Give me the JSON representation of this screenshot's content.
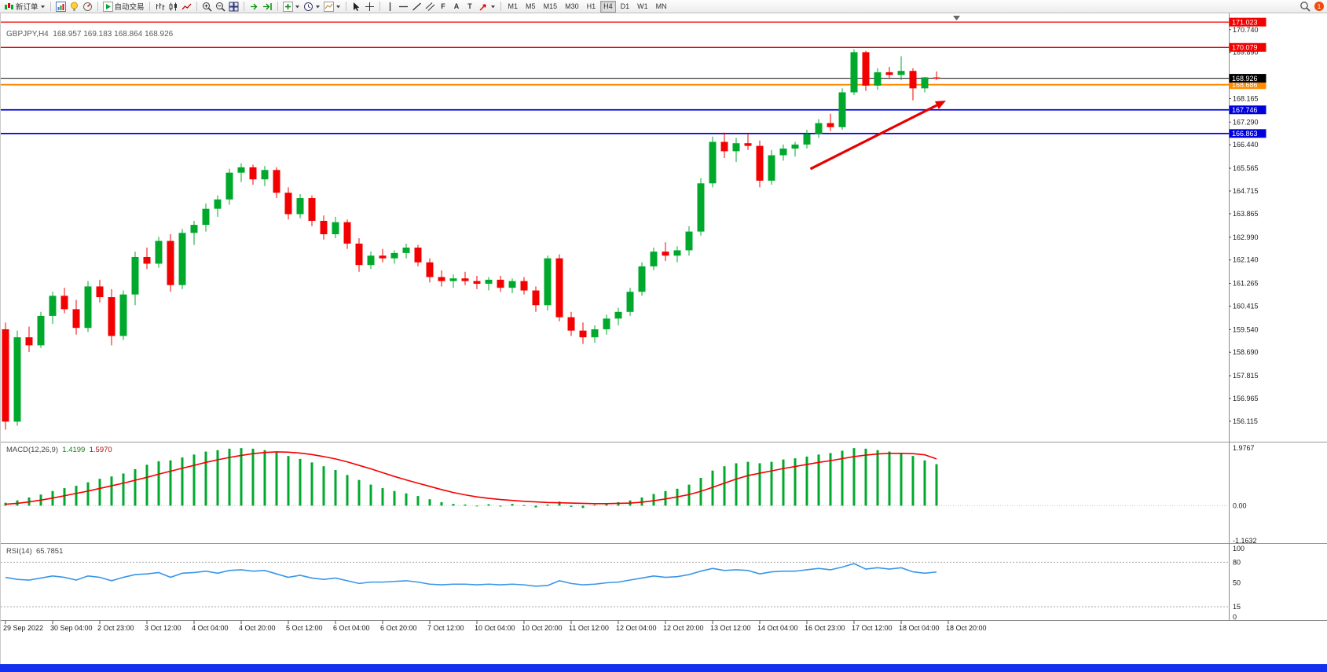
{
  "toolbar": {
    "new_order_label": "新订单",
    "autotrading_label": "自动交易",
    "timeframes": [
      "M1",
      "M5",
      "M15",
      "M30",
      "H1",
      "H4",
      "D1",
      "W1",
      "MN"
    ],
    "active_timeframe": "H4",
    "fibonacci_glyph": "F",
    "text_glyph": "A",
    "label_glyph": "T",
    "notification_count": "1"
  },
  "chart_data": {
    "type": "candlestick",
    "title": "GBPJPY,H4",
    "ohlc_text": "168.957 169.183 168.864 168.926",
    "colors": {
      "up": "#00a92c",
      "down": "#f30000",
      "level_red": "#f40000",
      "level_orange": "#ff8c00",
      "level_blue": "#0000dc",
      "current_line": "#111111",
      "macd_histogram": "#00a92c",
      "macd_signal": "#f30000",
      "rsi_line": "#3a96e8",
      "arrow": "#e60000",
      "taskbar": "#1430ef"
    },
    "price_axis_ticks": [
      "170.740",
      "169.890",
      "168.165",
      "167.290",
      "166.440",
      "165.565",
      "164.715",
      "163.865",
      "162.990",
      "162.140",
      "161.265",
      "160.415",
      "159.540",
      "158.690",
      "157.815",
      "156.965",
      "156.115"
    ],
    "levels": [
      {
        "label": "171.023",
        "price": 171.023,
        "color": "#f40000",
        "width": 1.3
      },
      {
        "label": "170.079",
        "price": 170.079,
        "color": "#f40000",
        "width": 1.3
      },
      {
        "label": "168.686",
        "price": 168.686,
        "color": "#ff8c00",
        "width": 2
      },
      {
        "label": "167.746",
        "price": 167.746,
        "color": "#0000dc",
        "width": 1.8
      },
      {
        "label": "166.863",
        "price": 166.863,
        "color": "#0000dc",
        "width": 1.8
      }
    ],
    "current_price": {
      "label": "168.926",
      "price": 168.926,
      "color": "#000000",
      "width": 1
    },
    "time_labels": [
      "29 Sep 2022",
      "30 Sep 04:00",
      "2 Oct 23:00",
      "3 Oct 12:00",
      "4 Oct 04:00",
      "4 Oct 20:00",
      "5 Oct 12:00",
      "6 Oct 04:00",
      "6 Oct 20:00",
      "7 Oct 12:00",
      "10 Oct 04:00",
      "10 Oct 20:00",
      "11 Oct 12:00",
      "12 Oct 04:00",
      "12 Oct 20:00",
      "13 Oct 12:00",
      "14 Oct 04:00",
      "16 Oct 23:00",
      "17 Oct 12:00",
      "18 Oct 04:00",
      "18 Oct 20:00"
    ],
    "candles": [
      [
        159.55,
        159.8,
        155.8,
        156.1
      ],
      [
        156.1,
        159.5,
        155.95,
        159.25
      ],
      [
        159.25,
        159.65,
        158.7,
        158.95
      ],
      [
        158.95,
        160.2,
        158.85,
        160.05
      ],
      [
        160.05,
        160.95,
        159.75,
        160.8
      ],
      [
        160.8,
        161.1,
        160.15,
        160.3
      ],
      [
        160.3,
        160.65,
        159.35,
        159.6
      ],
      [
        159.6,
        161.35,
        159.45,
        161.15
      ],
      [
        161.15,
        161.4,
        160.55,
        160.75
      ],
      [
        160.75,
        161.05,
        158.95,
        159.3
      ],
      [
        159.3,
        161.0,
        159.15,
        160.85
      ],
      [
        160.85,
        162.45,
        160.45,
        162.25
      ],
      [
        162.25,
        162.6,
        161.8,
        162.0
      ],
      [
        162.0,
        163.0,
        161.85,
        162.85
      ],
      [
        162.85,
        163.1,
        160.95,
        161.2
      ],
      [
        161.2,
        163.3,
        161.05,
        163.15
      ],
      [
        163.15,
        163.6,
        162.7,
        163.45
      ],
      [
        163.45,
        164.25,
        163.2,
        164.05
      ],
      [
        164.05,
        164.55,
        163.75,
        164.4
      ],
      [
        164.4,
        165.55,
        164.2,
        165.4
      ],
      [
        165.4,
        165.75,
        165.05,
        165.6
      ],
      [
        165.6,
        165.7,
        164.95,
        165.15
      ],
      [
        165.15,
        165.65,
        164.9,
        165.5
      ],
      [
        165.5,
        165.6,
        164.45,
        164.65
      ],
      [
        164.65,
        164.85,
        163.65,
        163.85
      ],
      [
        163.85,
        164.6,
        163.7,
        164.45
      ],
      [
        164.45,
        164.55,
        163.4,
        163.6
      ],
      [
        163.6,
        163.8,
        162.9,
        163.1
      ],
      [
        163.1,
        163.75,
        162.95,
        163.55
      ],
      [
        163.55,
        163.65,
        162.55,
        162.75
      ],
      [
        162.75,
        162.95,
        161.7,
        161.95
      ],
      [
        161.95,
        162.45,
        161.8,
        162.3
      ],
      [
        162.3,
        162.55,
        162.05,
        162.2
      ],
      [
        162.2,
        162.5,
        162.0,
        162.4
      ],
      [
        162.4,
        162.75,
        162.2,
        162.6
      ],
      [
        162.6,
        162.7,
        161.9,
        162.05
      ],
      [
        162.05,
        162.2,
        161.3,
        161.5
      ],
      [
        161.5,
        161.75,
        161.15,
        161.35
      ],
      [
        161.35,
        161.6,
        161.1,
        161.45
      ],
      [
        161.45,
        161.7,
        161.2,
        161.35
      ],
      [
        161.35,
        161.55,
        161.05,
        161.25
      ],
      [
        161.25,
        161.5,
        161.0,
        161.4
      ],
      [
        161.4,
        161.55,
        160.95,
        161.1
      ],
      [
        161.1,
        161.45,
        160.9,
        161.35
      ],
      [
        161.35,
        161.5,
        160.85,
        161.0
      ],
      [
        161.0,
        161.15,
        160.2,
        160.45
      ],
      [
        160.45,
        162.3,
        160.25,
        162.2
      ],
      [
        162.2,
        162.35,
        159.85,
        160.0
      ],
      [
        160.0,
        160.2,
        159.3,
        159.5
      ],
      [
        159.5,
        159.8,
        159.0,
        159.25
      ],
      [
        159.25,
        159.7,
        159.05,
        159.55
      ],
      [
        159.55,
        160.1,
        159.35,
        159.95
      ],
      [
        159.95,
        160.35,
        159.7,
        160.2
      ],
      [
        160.2,
        161.1,
        160.05,
        160.95
      ],
      [
        160.95,
        162.05,
        160.8,
        161.9
      ],
      [
        161.9,
        162.6,
        161.75,
        162.45
      ],
      [
        162.45,
        162.8,
        162.1,
        162.3
      ],
      [
        162.3,
        162.65,
        162.05,
        162.5
      ],
      [
        162.5,
        163.4,
        162.3,
        163.2
      ],
      [
        163.2,
        165.2,
        163.05,
        165.0
      ],
      [
        165.0,
        166.75,
        164.85,
        166.55
      ],
      [
        166.55,
        166.9,
        165.95,
        166.2
      ],
      [
        166.2,
        166.7,
        165.8,
        166.5
      ],
      [
        166.5,
        166.85,
        166.25,
        166.4
      ],
      [
        166.4,
        166.6,
        164.85,
        165.1
      ],
      [
        165.1,
        166.25,
        164.95,
        166.05
      ],
      [
        166.05,
        166.45,
        165.85,
        166.3
      ],
      [
        166.3,
        166.55,
        166.0,
        166.45
      ],
      [
        166.45,
        167.0,
        166.3,
        166.85
      ],
      [
        166.85,
        167.4,
        166.7,
        167.25
      ],
      [
        167.25,
        167.6,
        166.95,
        167.1
      ],
      [
        167.1,
        168.55,
        167.0,
        168.4
      ],
      [
        168.4,
        170.0,
        168.3,
        169.9
      ],
      [
        169.9,
        169.95,
        168.45,
        168.65
      ],
      [
        168.65,
        169.3,
        168.5,
        169.15
      ],
      [
        169.15,
        169.35,
        168.9,
        169.05
      ],
      [
        169.05,
        169.75,
        168.85,
        169.2
      ],
      [
        169.2,
        169.3,
        168.1,
        168.55
      ],
      [
        168.55,
        168.97,
        168.4,
        168.96
      ],
      [
        168.957,
        169.183,
        168.864,
        168.926
      ]
    ],
    "macd": {
      "label": "MACD(12,26,9)",
      "value_main": "1.4199",
      "value_signal": "1.5970",
      "scale": [
        "1.9767",
        "0.00",
        "-1.1632"
      ],
      "histogram": [
        0.1,
        0.18,
        0.28,
        0.38,
        0.5,
        0.6,
        0.68,
        0.8,
        0.92,
        1.0,
        1.1,
        1.25,
        1.4,
        1.52,
        1.55,
        1.65,
        1.75,
        1.85,
        1.9,
        1.95,
        1.97,
        1.95,
        1.9,
        1.82,
        1.7,
        1.6,
        1.48,
        1.35,
        1.22,
        1.05,
        0.88,
        0.72,
        0.6,
        0.5,
        0.42,
        0.33,
        0.22,
        0.12,
        0.06,
        0.04,
        -0.02,
        0.05,
        -0.03,
        0.06,
        0.02,
        -0.06,
        0.04,
        0.14,
        -0.04,
        -0.08,
        0.03,
        0.08,
        0.12,
        0.18,
        0.28,
        0.4,
        0.5,
        0.58,
        0.72,
        0.95,
        1.2,
        1.35,
        1.45,
        1.5,
        1.45,
        1.5,
        1.58,
        1.62,
        1.68,
        1.75,
        1.8,
        1.88,
        1.97,
        1.95,
        1.9,
        1.85,
        1.8,
        1.7,
        1.55,
        1.42
      ],
      "signal": [
        0.05,
        0.08,
        0.13,
        0.19,
        0.26,
        0.34,
        0.42,
        0.5,
        0.59,
        0.68,
        0.77,
        0.87,
        0.97,
        1.08,
        1.18,
        1.28,
        1.38,
        1.48,
        1.57,
        1.65,
        1.72,
        1.78,
        1.82,
        1.84,
        1.83,
        1.8,
        1.75,
        1.68,
        1.6,
        1.5,
        1.38,
        1.26,
        1.13,
        1.0,
        0.88,
        0.77,
        0.66,
        0.55,
        0.45,
        0.37,
        0.3,
        0.25,
        0.21,
        0.18,
        0.15,
        0.13,
        0.11,
        0.1,
        0.09,
        0.08,
        0.07,
        0.07,
        0.08,
        0.09,
        0.12,
        0.17,
        0.23,
        0.3,
        0.38,
        0.49,
        0.63,
        0.77,
        0.91,
        1.03,
        1.11,
        1.19,
        1.27,
        1.34,
        1.41,
        1.48,
        1.54,
        1.61,
        1.68,
        1.73,
        1.77,
        1.79,
        1.79,
        1.78,
        1.74,
        1.6
      ]
    },
    "rsi": {
      "label": "RSI(14)",
      "value": "65.7851",
      "scale": [
        "100",
        "80",
        "50",
        "15",
        "0"
      ],
      "level_values": [
        80,
        15
      ],
      "values": [
        58,
        55,
        54,
        57,
        60,
        58,
        54,
        60,
        58,
        53,
        58,
        62,
        63,
        65,
        58,
        64,
        65,
        67,
        64,
        68,
        69,
        67,
        68,
        63,
        58,
        61,
        57,
        55,
        57,
        53,
        49,
        51,
        51,
        52,
        53,
        51,
        48,
        47,
        48,
        48,
        47,
        48,
        47,
        48,
        47,
        45,
        46,
        53,
        49,
        47,
        48,
        50,
        51,
        54,
        57,
        60,
        58,
        59,
        62,
        67,
        71,
        68,
        69,
        68,
        63,
        66,
        67,
        67,
        69,
        71,
        69,
        73,
        78,
        70,
        72,
        70,
        72,
        66,
        64,
        65.79
      ]
    },
    "trend_arrow": {
      "from": {
        "candle": 68.3,
        "price": 165.54
      },
      "to": {
        "candle": 79.8,
        "price": 168.09
      }
    }
  }
}
